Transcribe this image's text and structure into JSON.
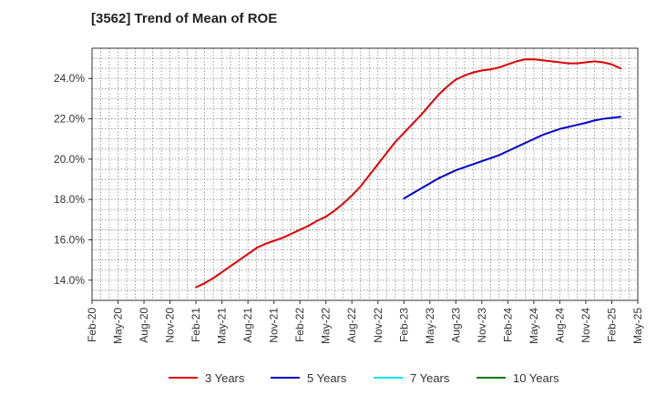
{
  "chart_data": {
    "type": "line",
    "title": "[3562]  Trend of Mean of ROE",
    "xlabel": "",
    "ylabel": "",
    "x_ticks": [
      "Feb-20",
      "May-20",
      "Aug-20",
      "Nov-20",
      "Feb-21",
      "May-21",
      "Aug-21",
      "Nov-21",
      "Feb-22",
      "May-22",
      "Aug-22",
      "Nov-22",
      "Feb-23",
      "May-23",
      "Aug-23",
      "Nov-23",
      "Feb-24",
      "May-24",
      "Aug-24",
      "Nov-24",
      "Feb-25",
      "May-25"
    ],
    "y_ticks": [
      "14.0%",
      "16.0%",
      "18.0%",
      "20.0%",
      "22.0%",
      "24.0%"
    ],
    "y_tick_values": [
      14,
      16,
      18,
      20,
      22,
      24
    ],
    "ylim": [
      13.0,
      25.5
    ],
    "x_range": [
      "Feb-20",
      "May-25"
    ],
    "grid": true,
    "legend_position": "bottom",
    "series": [
      {
        "name": "3 Years",
        "color": "#e00000",
        "points": [
          [
            "Feb-21",
            13.65
          ],
          [
            "Mar-21",
            13.85
          ],
          [
            "Apr-21",
            14.1
          ],
          [
            "May-21",
            14.4
          ],
          [
            "Jun-21",
            14.7
          ],
          [
            "Jul-21",
            15.0
          ],
          [
            "Aug-21",
            15.3
          ],
          [
            "Sep-21",
            15.6
          ],
          [
            "Oct-21",
            15.8
          ],
          [
            "Nov-21",
            15.95
          ],
          [
            "Dec-21",
            16.1
          ],
          [
            "Jan-22",
            16.3
          ],
          [
            "Feb-22",
            16.5
          ],
          [
            "Mar-22",
            16.7
          ],
          [
            "Apr-22",
            16.95
          ],
          [
            "May-22",
            17.15
          ],
          [
            "Jun-22",
            17.45
          ],
          [
            "Jul-22",
            17.8
          ],
          [
            "Aug-22",
            18.2
          ],
          [
            "Sep-22",
            18.65
          ],
          [
            "Oct-22",
            19.2
          ],
          [
            "Nov-22",
            19.75
          ],
          [
            "Dec-22",
            20.3
          ],
          [
            "Jan-23",
            20.85
          ],
          [
            "Feb-23",
            21.3
          ],
          [
            "Mar-23",
            21.75
          ],
          [
            "Apr-23",
            22.2
          ],
          [
            "May-23",
            22.7
          ],
          [
            "Jun-23",
            23.2
          ],
          [
            "Jul-23",
            23.6
          ],
          [
            "Aug-23",
            23.95
          ],
          [
            "Sep-23",
            24.15
          ],
          [
            "Oct-23",
            24.3
          ],
          [
            "Nov-23",
            24.4
          ],
          [
            "Dec-23",
            24.45
          ],
          [
            "Jan-24",
            24.55
          ],
          [
            "Feb-24",
            24.7
          ],
          [
            "Mar-24",
            24.85
          ],
          [
            "Apr-24",
            24.95
          ],
          [
            "May-24",
            24.95
          ],
          [
            "Jun-24",
            24.9
          ],
          [
            "Jul-24",
            24.85
          ],
          [
            "Aug-24",
            24.8
          ],
          [
            "Sep-24",
            24.75
          ],
          [
            "Oct-24",
            24.75
          ],
          [
            "Nov-24",
            24.8
          ],
          [
            "Dec-24",
            24.85
          ],
          [
            "Jan-25",
            24.8
          ],
          [
            "Feb-25",
            24.7
          ],
          [
            "Mar-25",
            24.5
          ]
        ]
      },
      {
        "name": "5 Years",
        "color": "#0000cc",
        "points": [
          [
            "Feb-23",
            18.05
          ],
          [
            "Mar-23",
            18.3
          ],
          [
            "Apr-23",
            18.55
          ],
          [
            "May-23",
            18.8
          ],
          [
            "Jun-23",
            19.05
          ],
          [
            "Jul-23",
            19.25
          ],
          [
            "Aug-23",
            19.45
          ],
          [
            "Sep-23",
            19.6
          ],
          [
            "Oct-23",
            19.75
          ],
          [
            "Nov-23",
            19.9
          ],
          [
            "Dec-23",
            20.05
          ],
          [
            "Jan-24",
            20.2
          ],
          [
            "Feb-24",
            20.4
          ],
          [
            "Mar-24",
            20.6
          ],
          [
            "Apr-24",
            20.8
          ],
          [
            "May-24",
            21.0
          ],
          [
            "Jun-24",
            21.2
          ],
          [
            "Jul-24",
            21.35
          ],
          [
            "Aug-24",
            21.5
          ],
          [
            "Sep-24",
            21.6
          ],
          [
            "Oct-24",
            21.7
          ],
          [
            "Nov-24",
            21.8
          ],
          [
            "Dec-24",
            21.92
          ],
          [
            "Jan-25",
            22.0
          ],
          [
            "Feb-25",
            22.05
          ],
          [
            "Mar-25",
            22.1
          ]
        ]
      },
      {
        "name": "7 Years",
        "color": "#00e5ee",
        "points": []
      },
      {
        "name": "10 Years",
        "color": "#007700",
        "points": []
      }
    ]
  }
}
